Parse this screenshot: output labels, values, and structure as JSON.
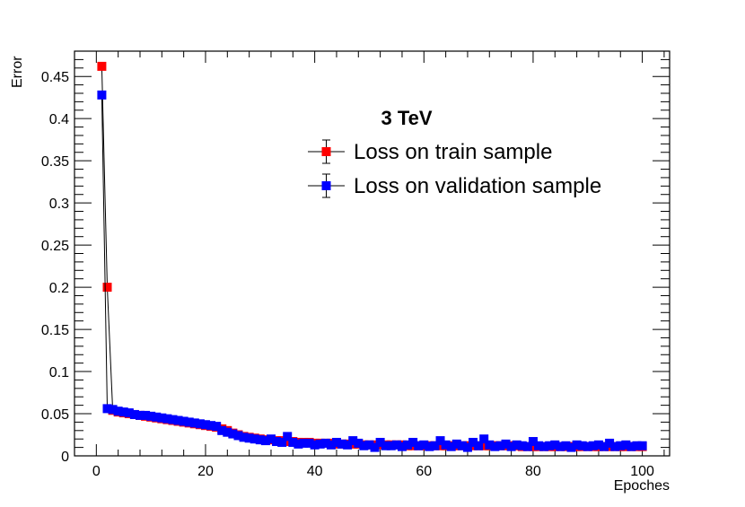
{
  "chart_data": {
    "type": "scatter",
    "title": "",
    "xlabel": "Epoches",
    "ylabel": "Error",
    "xlim": [
      -4,
      105
    ],
    "ylim": [
      0,
      0.48
    ],
    "x_ticks": [
      0,
      20,
      40,
      60,
      80,
      100
    ],
    "x_tick_labels": [
      "0",
      "20",
      "40",
      "60",
      "80",
      "100"
    ],
    "y_ticks": [
      0,
      0.05,
      0.1,
      0.15,
      0.2,
      0.25,
      0.3,
      0.35,
      0.4,
      0.45
    ],
    "y_tick_labels": [
      "0",
      "0.05",
      "0.1",
      "0.15",
      "0.2",
      "0.25",
      "0.3",
      "0.35",
      "0.4",
      "0.45"
    ],
    "legend": {
      "title": "3 TeV",
      "position": "top-right",
      "entries": [
        "Loss on train sample",
        "Loss on validation sample"
      ]
    },
    "series": [
      {
        "name": "Loss on train sample",
        "color": "#ff0000",
        "x": [
          1,
          2,
          3,
          4,
          5,
          6,
          7,
          8,
          9,
          10,
          11,
          12,
          13,
          14,
          15,
          16,
          17,
          18,
          19,
          20,
          21,
          22,
          23,
          24,
          25,
          26,
          27,
          28,
          29,
          30,
          31,
          32,
          33,
          34,
          35,
          36,
          37,
          38,
          39,
          40,
          41,
          42,
          43,
          44,
          45,
          46,
          47,
          48,
          49,
          50,
          51,
          52,
          53,
          54,
          55,
          56,
          57,
          58,
          59,
          60,
          61,
          62,
          63,
          64,
          65,
          66,
          67,
          68,
          69,
          70,
          71,
          72,
          73,
          74,
          75,
          76,
          77,
          78,
          79,
          80,
          81,
          82,
          83,
          84,
          85,
          86,
          87,
          88,
          89,
          90,
          91,
          92,
          93,
          94,
          95,
          96,
          97,
          98,
          99,
          100
        ],
        "values": [
          0.462,
          0.2,
          0.054,
          0.052,
          0.051,
          0.05,
          0.049,
          0.048,
          0.047,
          0.046,
          0.045,
          0.044,
          0.043,
          0.042,
          0.041,
          0.04,
          0.039,
          0.038,
          0.037,
          0.036,
          0.035,
          0.034,
          0.032,
          0.03,
          0.027,
          0.025,
          0.023,
          0.022,
          0.021,
          0.02,
          0.019,
          0.019,
          0.018,
          0.018,
          0.017,
          0.017,
          0.016,
          0.016,
          0.016,
          0.015,
          0.015,
          0.015,
          0.015,
          0.014,
          0.014,
          0.014,
          0.014,
          0.014,
          0.013,
          0.013,
          0.013,
          0.013,
          0.013,
          0.013,
          0.013,
          0.013,
          0.012,
          0.012,
          0.012,
          0.012,
          0.012,
          0.012,
          0.012,
          0.012,
          0.012,
          0.012,
          0.012,
          0.012,
          0.012,
          0.012,
          0.012,
          0.012,
          0.012,
          0.012,
          0.012,
          0.012,
          0.012,
          0.011,
          0.011,
          0.011,
          0.011,
          0.011,
          0.011,
          0.011,
          0.011,
          0.011,
          0.011,
          0.011,
          0.011,
          0.011,
          0.011,
          0.011,
          0.011,
          0.011,
          0.011,
          0.011,
          0.011,
          0.011,
          0.011,
          0.011
        ]
      },
      {
        "name": "Loss on validation sample",
        "color": "#0000ff",
        "x": [
          1,
          2,
          3,
          4,
          5,
          6,
          7,
          8,
          9,
          10,
          11,
          12,
          13,
          14,
          15,
          16,
          17,
          18,
          19,
          20,
          21,
          22,
          23,
          24,
          25,
          26,
          27,
          28,
          29,
          30,
          31,
          32,
          33,
          34,
          35,
          36,
          37,
          38,
          39,
          40,
          41,
          42,
          43,
          44,
          45,
          46,
          47,
          48,
          49,
          50,
          51,
          52,
          53,
          54,
          55,
          56,
          57,
          58,
          59,
          60,
          61,
          62,
          63,
          64,
          65,
          66,
          67,
          68,
          69,
          70,
          71,
          72,
          73,
          74,
          75,
          76,
          77,
          78,
          79,
          80,
          81,
          82,
          83,
          84,
          85,
          86,
          87,
          88,
          89,
          90,
          91,
          92,
          93,
          94,
          95,
          96,
          97,
          98,
          99,
          100
        ],
        "values": [
          0.428,
          0.056,
          0.055,
          0.053,
          0.052,
          0.051,
          0.049,
          0.048,
          0.048,
          0.047,
          0.046,
          0.045,
          0.044,
          0.043,
          0.042,
          0.041,
          0.04,
          0.039,
          0.038,
          0.037,
          0.036,
          0.035,
          0.03,
          0.028,
          0.026,
          0.024,
          0.022,
          0.021,
          0.02,
          0.019,
          0.018,
          0.02,
          0.017,
          0.016,
          0.023,
          0.016,
          0.014,
          0.015,
          0.015,
          0.013,
          0.014,
          0.015,
          0.013,
          0.016,
          0.014,
          0.013,
          0.018,
          0.015,
          0.012,
          0.013,
          0.01,
          0.016,
          0.012,
          0.012,
          0.013,
          0.011,
          0.013,
          0.016,
          0.012,
          0.013,
          0.011,
          0.012,
          0.018,
          0.013,
          0.011,
          0.014,
          0.012,
          0.01,
          0.016,
          0.012,
          0.02,
          0.013,
          0.011,
          0.012,
          0.014,
          0.011,
          0.013,
          0.012,
          0.011,
          0.017,
          0.012,
          0.011,
          0.012,
          0.013,
          0.011,
          0.012,
          0.01,
          0.013,
          0.012,
          0.011,
          0.012,
          0.013,
          0.011,
          0.015,
          0.011,
          0.012,
          0.013,
          0.011,
          0.012,
          0.012
        ]
      }
    ]
  }
}
